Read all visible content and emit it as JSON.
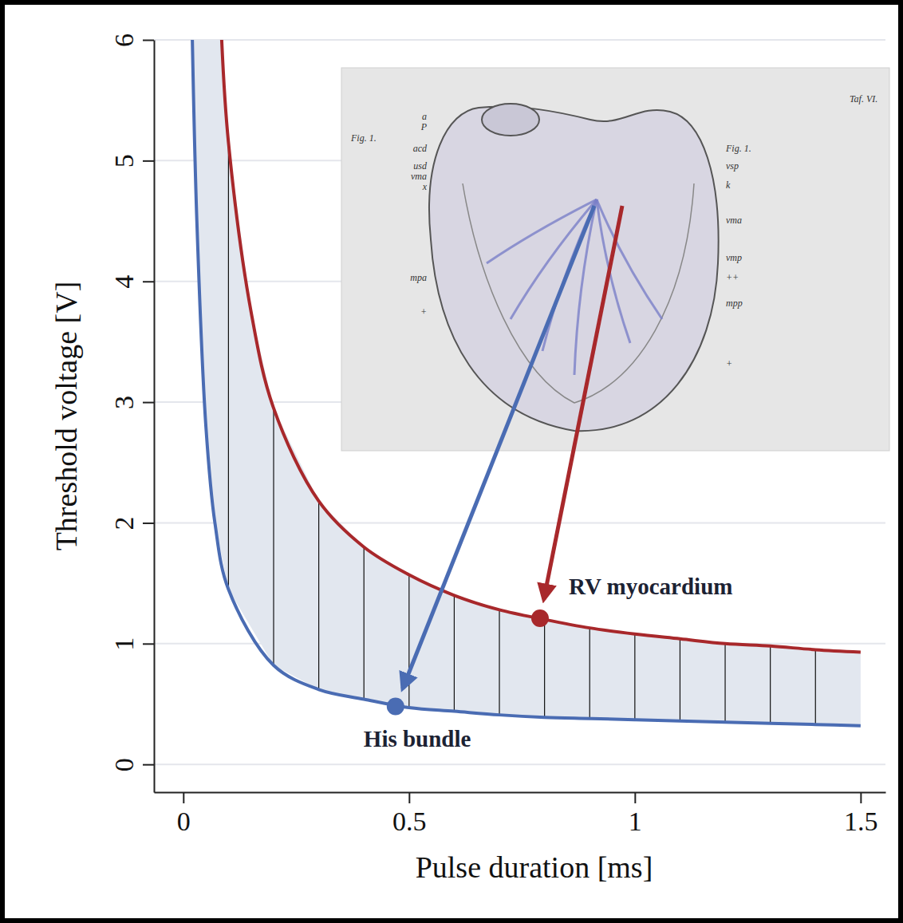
{
  "chart_data": {
    "type": "line",
    "xlabel": "Pulse duration [ms]",
    "ylabel": "Threshold voltage [V]",
    "xlim": [
      -0.065,
      1.555
    ],
    "ylim": [
      -0.23,
      6
    ],
    "xticks": [
      0,
      0.5,
      1,
      1.5
    ],
    "yticks": [
      0,
      1,
      2,
      3,
      4,
      5,
      6
    ],
    "grid": true,
    "series": [
      {
        "name": "His bundle",
        "color": "#4a6cb3",
        "x": [
          0.02,
          0.03,
          0.05,
          0.07,
          0.1,
          0.2,
          0.3,
          0.4,
          0.5,
          0.6,
          0.7,
          0.8,
          0.9,
          1.0,
          1.1,
          1.2,
          1.3,
          1.4,
          1.5
        ],
        "values": [
          6.0,
          4.5,
          2.8,
          2.0,
          1.45,
          0.82,
          0.62,
          0.54,
          0.47,
          0.44,
          0.41,
          0.39,
          0.38,
          0.37,
          0.36,
          0.35,
          0.34,
          0.33,
          0.32
        ],
        "point": {
          "x": 0.47,
          "y": 0.48
        }
      },
      {
        "name": "RV myocardium",
        "color": "#a8282b",
        "x": [
          0.085,
          0.1,
          0.15,
          0.2,
          0.3,
          0.4,
          0.5,
          0.6,
          0.7,
          0.8,
          0.9,
          1.0,
          1.1,
          1.2,
          1.3,
          1.4,
          1.5
        ],
        "values": [
          6.0,
          5.15,
          3.75,
          2.95,
          2.18,
          1.8,
          1.57,
          1.4,
          1.28,
          1.2,
          1.13,
          1.08,
          1.04,
          1.0,
          0.98,
          0.95,
          0.93
        ],
        "point": {
          "x": 0.79,
          "y": 1.21
        }
      }
    ],
    "inset_labels": [
      "a",
      "P",
      "acd",
      "usd",
      "vma",
      "x",
      "mpa",
      "+",
      "Fig. 1.",
      "Taf. VI.",
      "Fig. 1.",
      "vsp",
      "k",
      "vma",
      "vmp",
      "++",
      "mpp",
      "+"
    ]
  }
}
